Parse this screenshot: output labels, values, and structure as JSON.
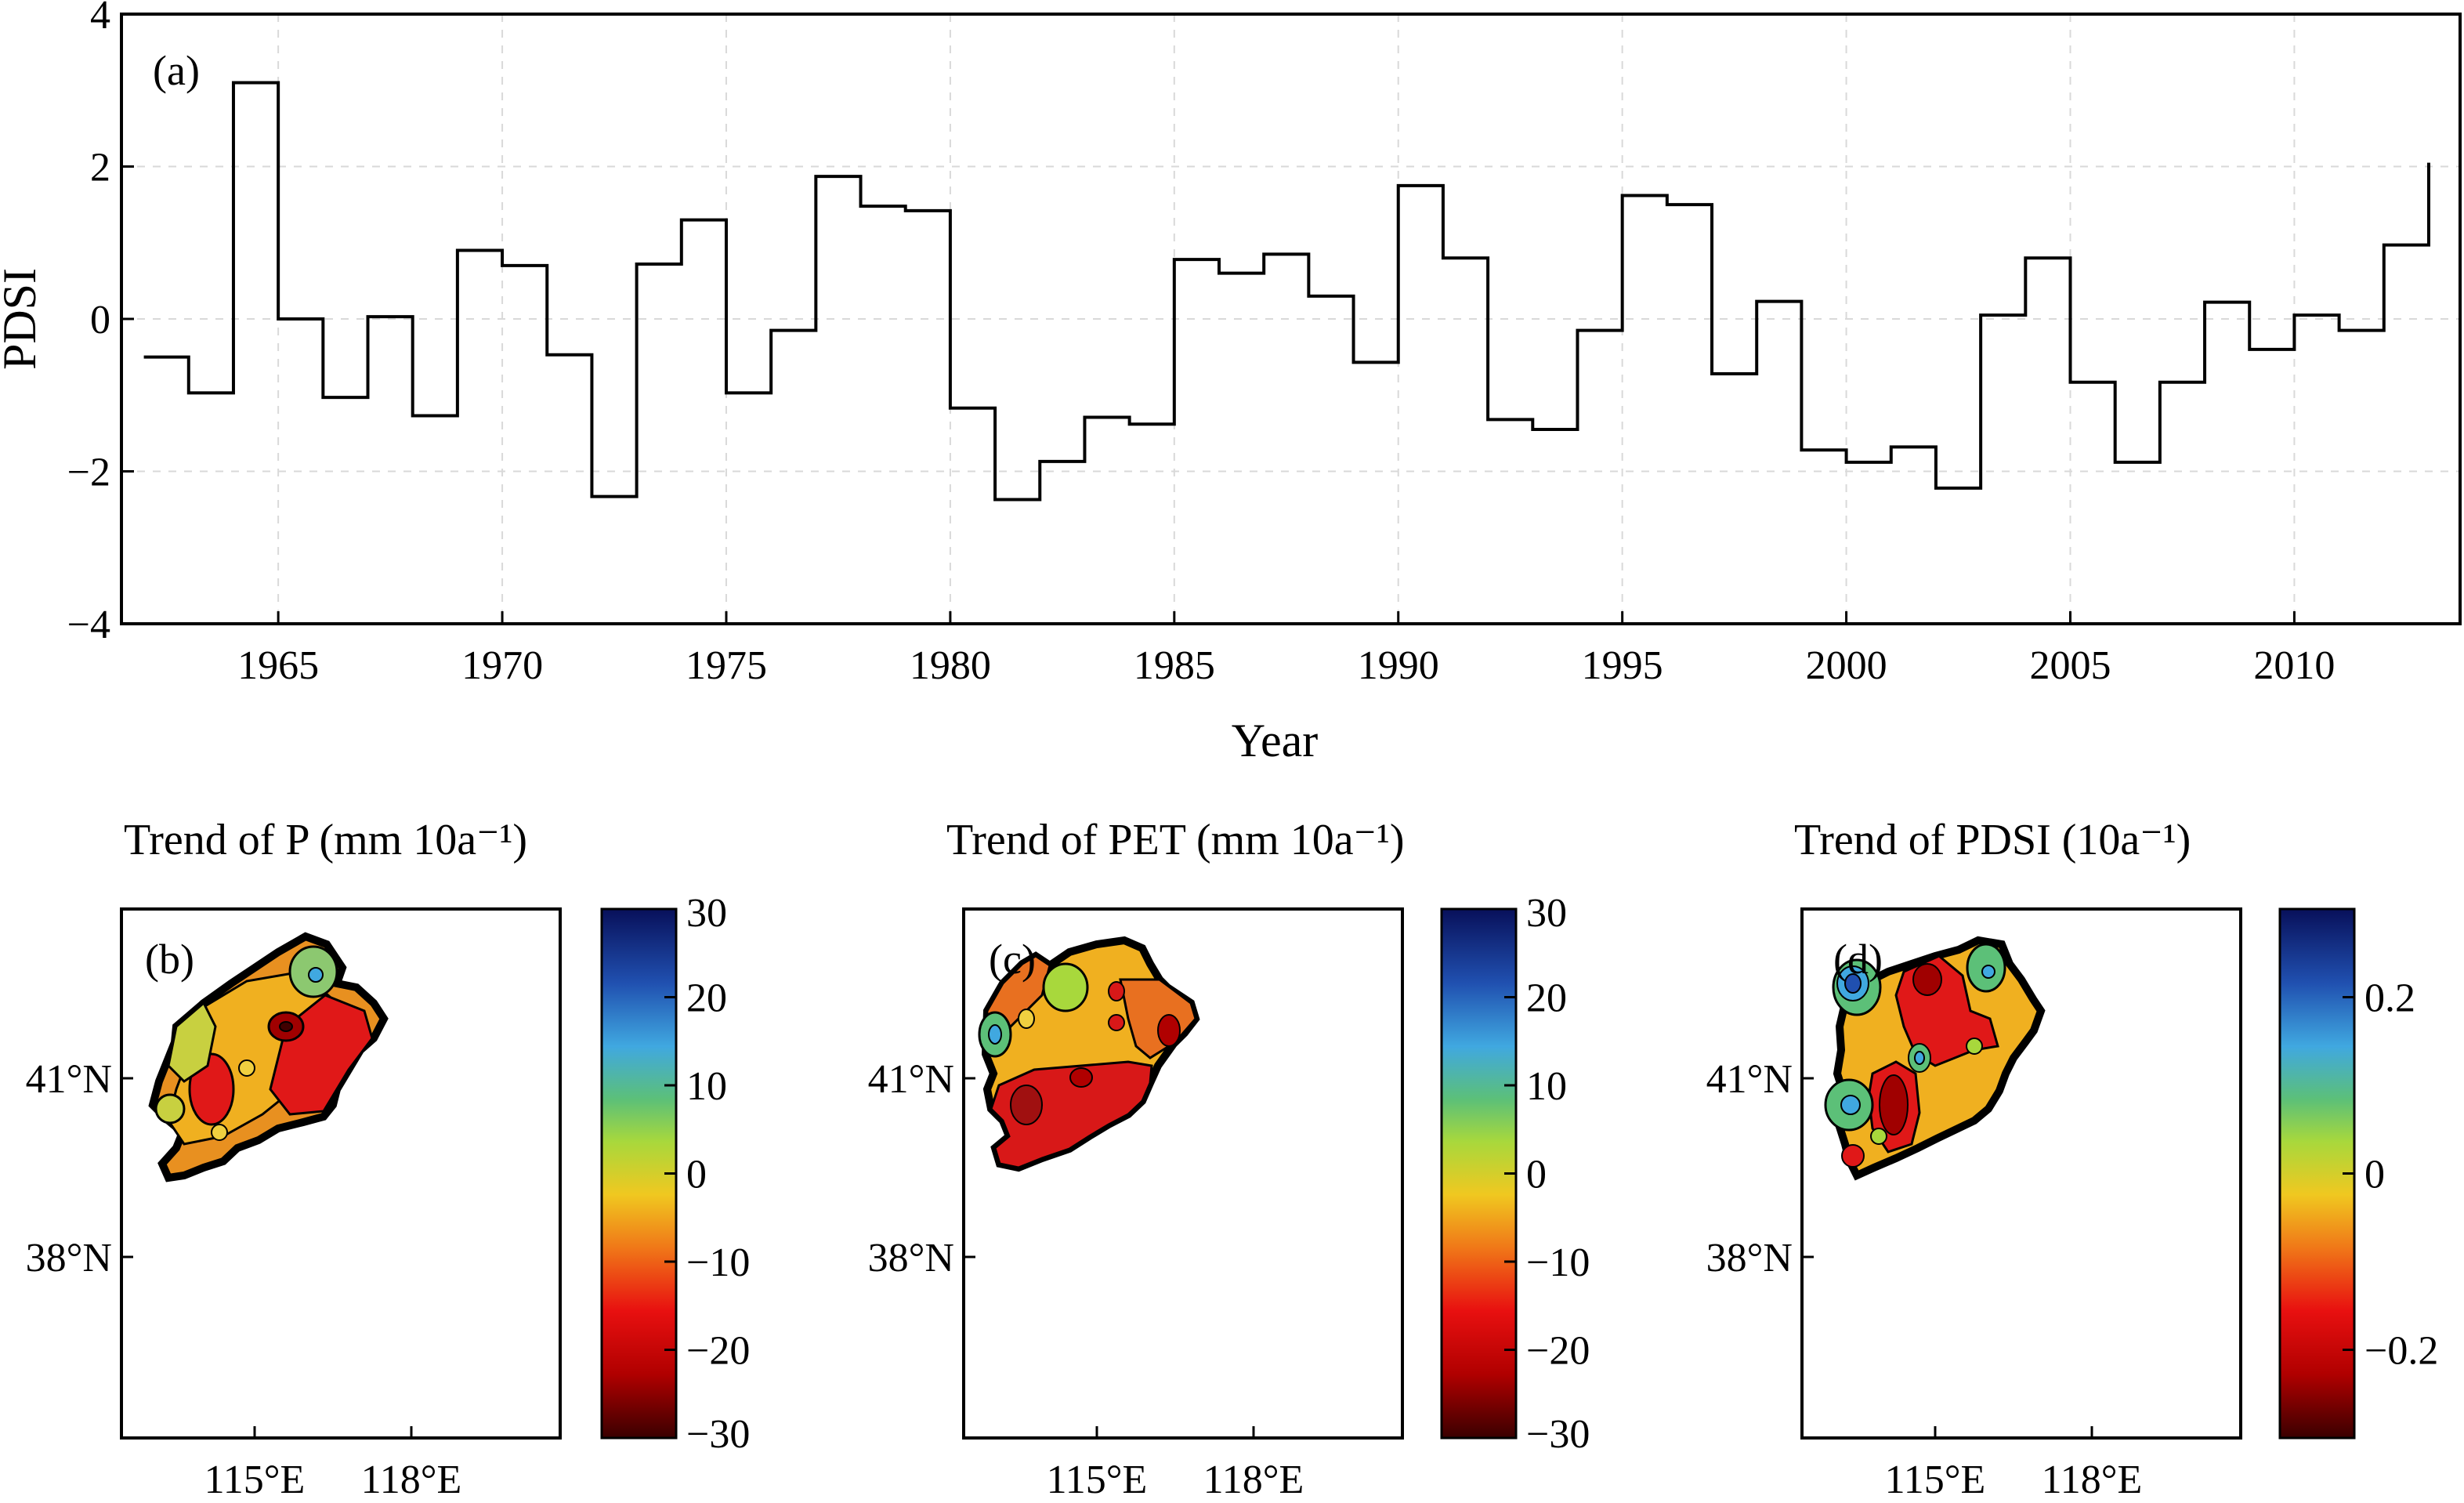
{
  "chart_data": [
    {
      "type": "line",
      "panel_label": "(a)",
      "step": true,
      "xlabel": "Year",
      "ylabel": "PDSI",
      "xlim": [
        1961.5,
        2013.7
      ],
      "ylim": [
        -4,
        4
      ],
      "xticks": [
        "1965",
        "1970",
        "1975",
        "1980",
        "1985",
        "1990",
        "1995",
        "2000",
        "2005",
        "2010"
      ],
      "yticks": [
        "−4",
        "−2",
        "0",
        "2",
        "4"
      ],
      "grid": true,
      "x": [
        1962,
        1963,
        1964,
        1965,
        1966,
        1967,
        1968,
        1969,
        1970,
        1971,
        1972,
        1973,
        1974,
        1975,
        1976,
        1977,
        1978,
        1979,
        1980,
        1981,
        1982,
        1983,
        1984,
        1985,
        1986,
        1987,
        1988,
        1989,
        1990,
        1991,
        1992,
        1993,
        1994,
        1995,
        1996,
        1997,
        1998,
        1999,
        2000,
        2001,
        2002,
        2003,
        2004,
        2005,
        2006,
        2007,
        2008,
        2009,
        2010,
        2011,
        2012,
        2013
      ],
      "values": [
        -0.5,
        -0.97,
        3.1,
        0.0,
        -1.03,
        0.03,
        -1.27,
        0.9,
        0.7,
        -0.47,
        -2.33,
        0.72,
        1.3,
        -0.97,
        -0.15,
        1.87,
        1.48,
        1.42,
        -1.17,
        -2.37,
        -1.87,
        -1.29,
        -1.38,
        0.78,
        0.6,
        0.85,
        0.3,
        -0.57,
        1.75,
        0.8,
        -1.32,
        -1.45,
        -0.15,
        1.62,
        1.5,
        -0.72,
        0.23,
        -1.72,
        -1.88,
        -1.68,
        -2.22,
        0.05,
        0.8,
        -0.83,
        -1.88,
        -0.83,
        0.22,
        -0.4,
        0.05,
        -0.15,
        0.97,
        2.05
      ]
    },
    {
      "type": "heatmap",
      "panel_label": "(b)",
      "title": "Trend of P (mm 10a⁻¹)",
      "xticks": [
        "115°E",
        "118°E"
      ],
      "yticks": [
        "41°N",
        "38°N"
      ],
      "colorbar_ticks": [
        "30",
        "20",
        "10",
        "0",
        "−10",
        "−20",
        "−30"
      ],
      "colorbar_range": [
        -30,
        30
      ]
    },
    {
      "type": "heatmap",
      "panel_label": "(c)",
      "title": "Trend of PET (mm 10a⁻¹)",
      "xticks": [
        "115°E",
        "118°E"
      ],
      "yticks": [
        "41°N",
        "38°N"
      ],
      "colorbar_ticks": [
        "30",
        "20",
        "10",
        "0",
        "−10",
        "−20",
        "−30"
      ],
      "colorbar_range": [
        -30,
        30
      ]
    },
    {
      "type": "heatmap",
      "panel_label": "(d)",
      "title": "Trend of PDSI (10a⁻¹)",
      "xticks": [
        "115°E",
        "118°E"
      ],
      "yticks": [
        "41°N",
        "38°N"
      ],
      "colorbar_ticks": [
        "0.2",
        "0",
        "−0.2"
      ],
      "colorbar_range": [
        -0.3,
        0.3
      ]
    }
  ]
}
